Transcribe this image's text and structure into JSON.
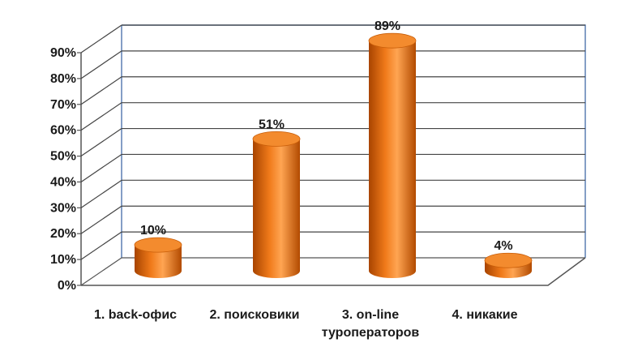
{
  "chart_data": {
    "type": "bar",
    "style": "3d-cylinder",
    "categories": [
      [
        "1. back-офис"
      ],
      [
        "2. поисковики"
      ],
      [
        "3. on-line",
        "туроператоров"
      ],
      [
        "4. никакие"
      ]
    ],
    "values": [
      10,
      51,
      89,
      4
    ],
    "data_labels": [
      "10%",
      "51%",
      "89%",
      "4%"
    ],
    "y_ticks": [
      "0%",
      "10%",
      "20%",
      "30%",
      "40%",
      "50%",
      "60%",
      "70%",
      "80%",
      "90%"
    ],
    "ylim": [
      0,
      90
    ],
    "unit": "%",
    "grid": true,
    "legend": "none",
    "colors": {
      "bar_main": "#f07a1a",
      "bar_dark": "#a84400",
      "bar_light": "#ffb060",
      "bar_top": "#f38b2e",
      "grid": "#444444",
      "frame": "#5b7fb3"
    }
  }
}
